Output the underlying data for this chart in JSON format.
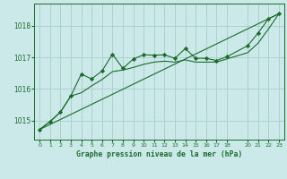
{
  "title": "Graphe pression niveau de la mer (hPa)",
  "bg_color": "#cce9e9",
  "plot_bg_color": "#cce9e9",
  "grid_color": "#aacccc",
  "line_color": "#1a6b2a",
  "marker_color": "#1a6b2a",
  "xlim": [
    -0.5,
    23.5
  ],
  "ylim": [
    1014.4,
    1018.7
  ],
  "yticks": [
    1015,
    1016,
    1017,
    1018
  ],
  "xticks": [
    0,
    1,
    2,
    3,
    4,
    5,
    6,
    7,
    8,
    9,
    10,
    11,
    12,
    13,
    14,
    15,
    16,
    17,
    18,
    20,
    21,
    22,
    23
  ],
  "line_jagged": [
    [
      0,
      1014.72
    ],
    [
      1,
      1014.97
    ],
    [
      2,
      1015.27
    ],
    [
      3,
      1015.78
    ],
    [
      4,
      1016.47
    ],
    [
      5,
      1016.32
    ],
    [
      6,
      1016.57
    ],
    [
      7,
      1017.1
    ],
    [
      8,
      1016.65
    ],
    [
      9,
      1016.95
    ],
    [
      10,
      1017.08
    ],
    [
      11,
      1017.07
    ],
    [
      12,
      1017.08
    ],
    [
      13,
      1016.97
    ],
    [
      14,
      1017.28
    ],
    [
      15,
      1016.97
    ],
    [
      16,
      1016.97
    ],
    [
      17,
      1016.9
    ],
    [
      18,
      1017.02
    ],
    [
      20,
      1017.37
    ],
    [
      21,
      1017.77
    ],
    [
      22,
      1018.22
    ],
    [
      23,
      1018.38
    ]
  ],
  "line_smooth": [
    [
      0,
      1014.72
    ],
    [
      1,
      1014.97
    ],
    [
      2,
      1015.27
    ],
    [
      3,
      1015.78
    ],
    [
      4,
      1015.88
    ],
    [
      5,
      1016.1
    ],
    [
      6,
      1016.3
    ],
    [
      7,
      1016.55
    ],
    [
      8,
      1016.6
    ],
    [
      9,
      1016.68
    ],
    [
      10,
      1016.78
    ],
    [
      11,
      1016.85
    ],
    [
      12,
      1016.88
    ],
    [
      13,
      1016.85
    ],
    [
      14,
      1016.92
    ],
    [
      15,
      1016.85
    ],
    [
      16,
      1016.85
    ],
    [
      17,
      1016.85
    ],
    [
      18,
      1016.95
    ],
    [
      20,
      1017.15
    ],
    [
      21,
      1017.45
    ],
    [
      22,
      1017.9
    ],
    [
      23,
      1018.38
    ]
  ],
  "trend_line": [
    [
      0,
      1014.72
    ],
    [
      23,
      1018.38
    ]
  ]
}
